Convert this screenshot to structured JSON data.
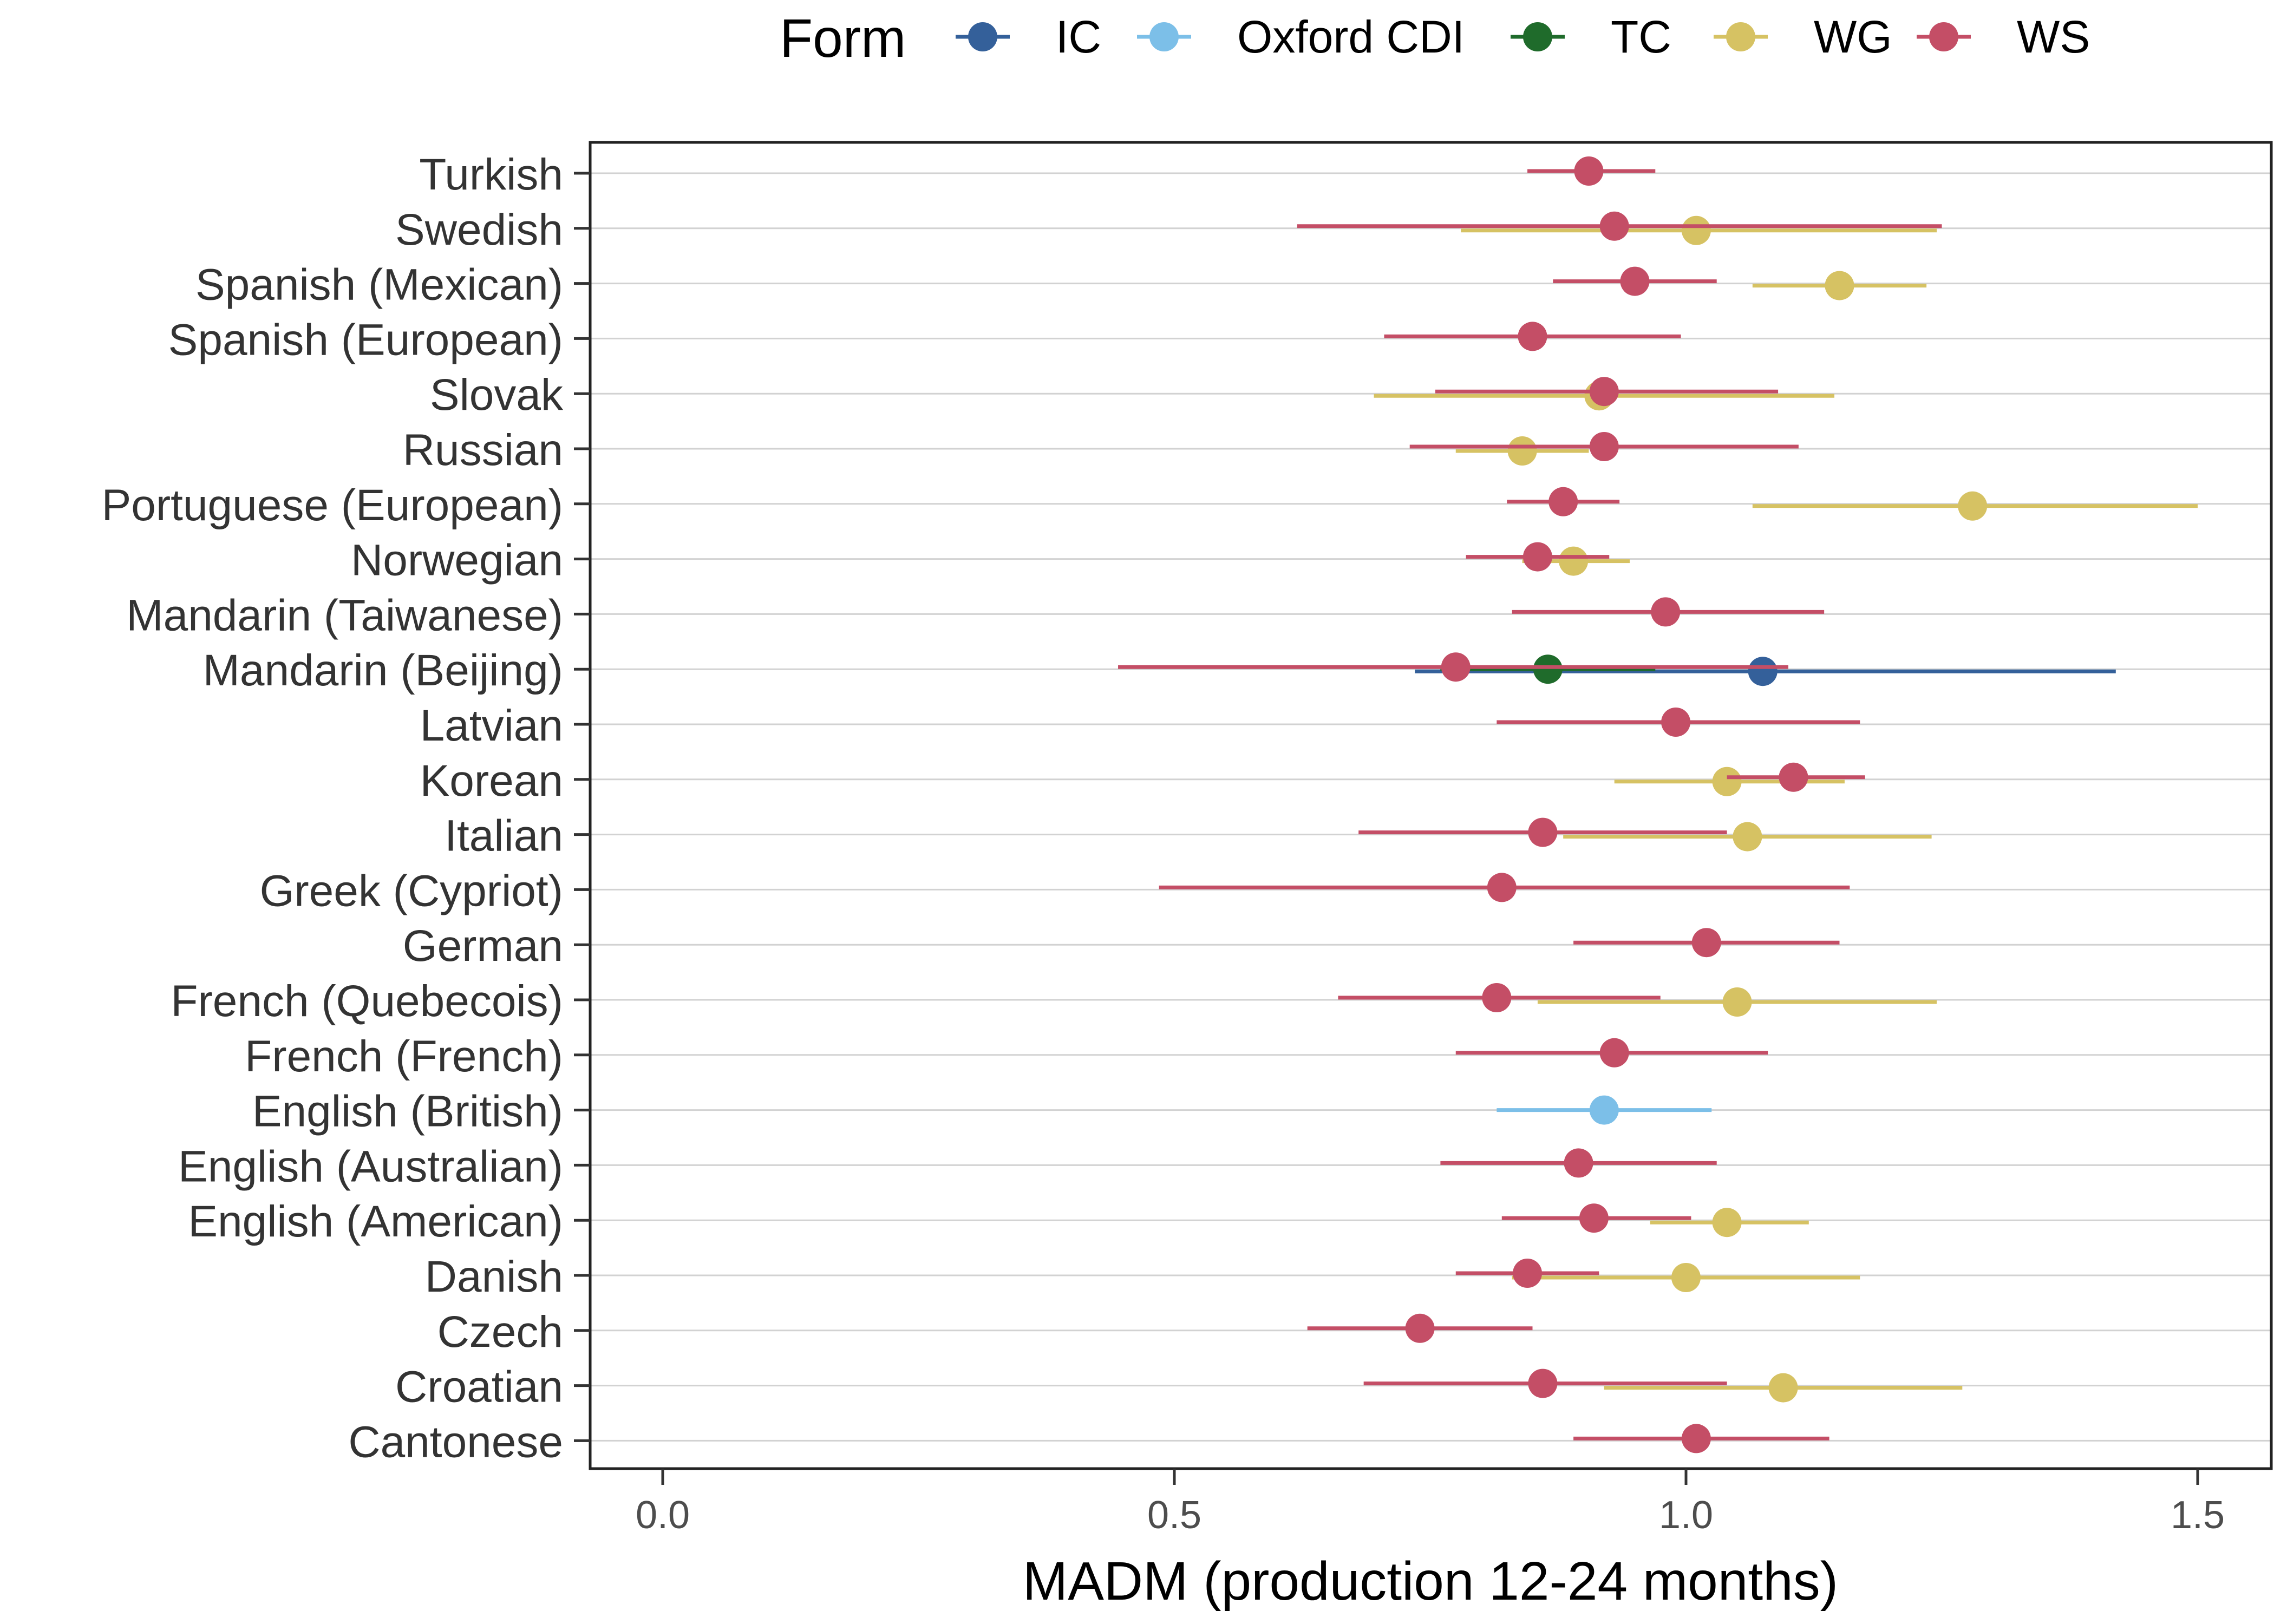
{
  "chart_data": {
    "type": "scatter",
    "xlabel": "MADM (production 12-24 months)",
    "xlim": [
      -0.07,
      1.57
    ],
    "x_ticks": [
      "0.0",
      "0.5",
      "1.0",
      "1.5"
    ],
    "x_tick_values": [
      0,
      0.5,
      1.0,
      1.5
    ],
    "grid": "horizontal",
    "legend": {
      "title": "Form",
      "position": "top",
      "entries": [
        {
          "name": "IC",
          "color": "#34609A"
        },
        {
          "name": "Oxford CDI",
          "color": "#7CBFE8"
        },
        {
          "name": "TC",
          "color": "#1F6B2B"
        },
        {
          "name": "WG",
          "color": "#D6C263"
        },
        {
          "name": "WS",
          "color": "#C44E66"
        }
      ]
    },
    "categories": [
      "Turkish",
      "Swedish",
      "Spanish (Mexican)",
      "Spanish (European)",
      "Slovak",
      "Russian",
      "Portuguese (European)",
      "Norwegian",
      "Mandarin (Taiwanese)",
      "Mandarin (Beijing)",
      "Latvian",
      "Korean",
      "Italian",
      "Greek (Cypriot)",
      "German",
      "French (Quebecois)",
      "French (French)",
      "English (British)",
      "English (Australian)",
      "English (American)",
      "Danish",
      "Czech",
      "Croatian",
      "Cantonese"
    ],
    "points": [
      {
        "category": "Turkish",
        "form": "WS",
        "x": 0.905,
        "lo": 0.845,
        "hi": 0.97
      },
      {
        "category": "Swedish",
        "form": "WG",
        "x": 1.01,
        "lo": 0.78,
        "hi": 1.245
      },
      {
        "category": "Swedish",
        "form": "WS",
        "x": 0.93,
        "lo": 0.62,
        "hi": 1.25
      },
      {
        "category": "Spanish (Mexican)",
        "form": "WG",
        "x": 1.15,
        "lo": 1.065,
        "hi": 1.235
      },
      {
        "category": "Spanish (Mexican)",
        "form": "WS",
        "x": 0.95,
        "lo": 0.87,
        "hi": 1.03
      },
      {
        "category": "Spanish (European)",
        "form": "WS",
        "x": 0.85,
        "lo": 0.705,
        "hi": 0.995
      },
      {
        "category": "Slovak",
        "form": "WS",
        "x": 0.92,
        "lo": 0.755,
        "hi": 1.09
      },
      {
        "category": "Slovak",
        "form": "WG",
        "x": 0.915,
        "lo": 0.695,
        "hi": 1.145
      },
      {
        "category": "Russian",
        "form": "WG",
        "x": 0.84,
        "lo": 0.775,
        "hi": 0.905
      },
      {
        "category": "Russian",
        "form": "WS",
        "x": 0.92,
        "lo": 0.73,
        "hi": 1.11
      },
      {
        "category": "Portuguese (European)",
        "form": "WG",
        "x": 1.28,
        "lo": 1.065,
        "hi": 1.5
      },
      {
        "category": "Portuguese (European)",
        "form": "WS",
        "x": 0.88,
        "lo": 0.825,
        "hi": 0.935
      },
      {
        "category": "Norwegian",
        "form": "WG",
        "x": 0.89,
        "lo": 0.84,
        "hi": 0.945
      },
      {
        "category": "Norwegian",
        "form": "WS",
        "x": 0.855,
        "lo": 0.785,
        "hi": 0.925
      },
      {
        "category": "Mandarin (Taiwanese)",
        "form": "WS",
        "x": 0.98,
        "lo": 0.83,
        "hi": 1.135
      },
      {
        "category": "Mandarin (Beijing)",
        "form": "IC",
        "x": 1.075,
        "lo": 0.735,
        "hi": 1.42
      },
      {
        "category": "Mandarin (Beijing)",
        "form": "TC",
        "x": 0.865,
        "lo": 0.76,
        "hi": 0.97
      },
      {
        "category": "Mandarin (Beijing)",
        "form": "WS",
        "x": 0.775,
        "lo": 0.445,
        "hi": 1.1
      },
      {
        "category": "Latvian",
        "form": "WS",
        "x": 0.99,
        "lo": 0.815,
        "hi": 1.17
      },
      {
        "category": "Korean",
        "form": "WG",
        "x": 1.04,
        "lo": 0.93,
        "hi": 1.155
      },
      {
        "category": "Korean",
        "form": "WS",
        "x": 1.105,
        "lo": 1.04,
        "hi": 1.175
      },
      {
        "category": "Italian",
        "form": "WG",
        "x": 1.06,
        "lo": 0.88,
        "hi": 1.24
      },
      {
        "category": "Italian",
        "form": "WS",
        "x": 0.86,
        "lo": 0.68,
        "hi": 1.04
      },
      {
        "category": "Greek (Cypriot)",
        "form": "WS",
        "x": 0.82,
        "lo": 0.485,
        "hi": 1.16
      },
      {
        "category": "German",
        "form": "WS",
        "x": 1.02,
        "lo": 0.89,
        "hi": 1.15
      },
      {
        "category": "French (Quebecois)",
        "form": "WG",
        "x": 1.05,
        "lo": 0.855,
        "hi": 1.245
      },
      {
        "category": "French (Quebecois)",
        "form": "WS",
        "x": 0.815,
        "lo": 0.66,
        "hi": 0.975
      },
      {
        "category": "French (French)",
        "form": "WS",
        "x": 0.93,
        "lo": 0.775,
        "hi": 1.08
      },
      {
        "category": "English (British)",
        "form": "Oxford CDI",
        "x": 0.92,
        "lo": 0.815,
        "hi": 1.025
      },
      {
        "category": "English (Australian)",
        "form": "WS",
        "x": 0.895,
        "lo": 0.76,
        "hi": 1.03
      },
      {
        "category": "English (American)",
        "form": "WG",
        "x": 1.04,
        "lo": 0.965,
        "hi": 1.12
      },
      {
        "category": "English (American)",
        "form": "WS",
        "x": 0.91,
        "lo": 0.82,
        "hi": 1.005
      },
      {
        "category": "Danish",
        "form": "WG",
        "x": 1.0,
        "lo": 0.83,
        "hi": 1.17
      },
      {
        "category": "Danish",
        "form": "WS",
        "x": 0.845,
        "lo": 0.775,
        "hi": 0.915
      },
      {
        "category": "Czech",
        "form": "WS",
        "x": 0.74,
        "lo": 0.63,
        "hi": 0.85
      },
      {
        "category": "Croatian",
        "form": "WG",
        "x": 1.095,
        "lo": 0.92,
        "hi": 1.27
      },
      {
        "category": "Croatian",
        "form": "WS",
        "x": 0.86,
        "lo": 0.685,
        "hi": 1.04
      },
      {
        "category": "Cantonese",
        "form": "WS",
        "x": 1.01,
        "lo": 0.89,
        "hi": 1.14
      }
    ]
  }
}
